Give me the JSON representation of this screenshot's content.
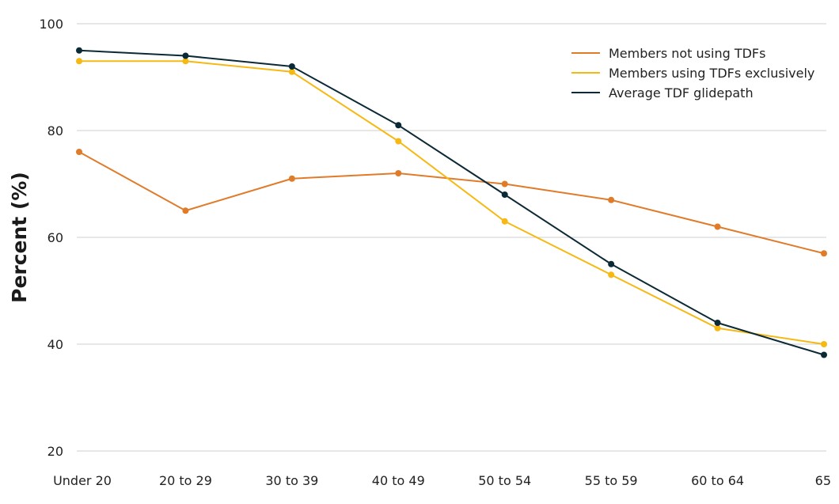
{
  "chart_data": {
    "type": "line",
    "title": "",
    "xlabel": "",
    "ylabel": "Percent (%)",
    "categories": [
      "Under 20",
      "20 to 29",
      "30 to 39",
      "40 to 49",
      "50 to 54",
      "55 to 59",
      "60 to 64",
      "65"
    ],
    "ylim": [
      20,
      100
    ],
    "yticks": [
      20,
      40,
      60,
      80,
      100
    ],
    "grid": true,
    "legend_position": "top-right",
    "series": [
      {
        "name": "Members not using TDFs",
        "color": "#e07b2a",
        "values": [
          76,
          65,
          71,
          72,
          70,
          67,
          62,
          57
        ]
      },
      {
        "name": "Members using TDFs exclusively",
        "color": "#f6b914",
        "values": [
          93,
          93,
          91,
          78,
          63,
          53,
          43,
          40
        ]
      },
      {
        "name": "Average TDF glidepath",
        "color": "#0c2a36",
        "values": [
          95,
          94,
          92,
          81,
          68,
          55,
          44,
          38
        ]
      }
    ]
  }
}
